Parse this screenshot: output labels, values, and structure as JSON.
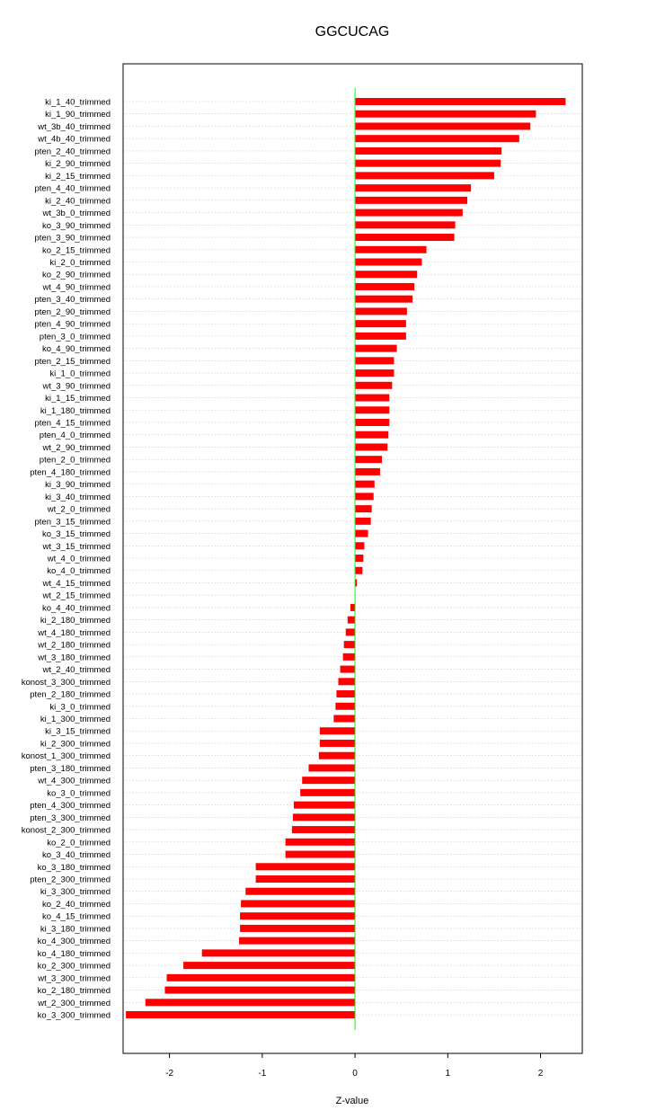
{
  "chart_data": {
    "type": "bar",
    "orientation": "horizontal",
    "title": "GGCUCAG",
    "xlabel": "Z-value",
    "ylabel": "",
    "xlim": [
      -2.5,
      2.45
    ],
    "xticks": [
      -2,
      -1,
      0,
      1,
      2
    ],
    "grid": "horizontal dotted",
    "bar_color": "#ff0000",
    "zero_line_color": "#00ff00",
    "categories": [
      "ki_1_40_trimmed",
      "ki_1_90_trimmed",
      "wt_3b_40_trimmed",
      "wt_4b_40_trimmed",
      "pten_2_40_trimmed",
      "ki_2_90_trimmed",
      "ki_2_15_trimmed",
      "pten_4_40_trimmed",
      "ki_2_40_trimmed",
      "wt_3b_0_trimmed",
      "ko_3_90_trimmed",
      "pten_3_90_trimmed",
      "ko_2_15_trimmed",
      "ki_2_0_trimmed",
      "ko_2_90_trimmed",
      "wt_4_90_trimmed",
      "pten_3_40_trimmed",
      "pten_2_90_trimmed",
      "pten_4_90_trimmed",
      "pten_3_0_trimmed",
      "ko_4_90_trimmed",
      "pten_2_15_trimmed",
      "ki_1_0_trimmed",
      "wt_3_90_trimmed",
      "ki_1_15_trimmed",
      "ki_1_180_trimmed",
      "pten_4_15_trimmed",
      "pten_4_0_trimmed",
      "wt_2_90_trimmed",
      "pten_2_0_trimmed",
      "pten_4_180_trimmed",
      "ki_3_90_trimmed",
      "ki_3_40_trimmed",
      "wt_2_0_trimmed",
      "pten_3_15_trimmed",
      "ko_3_15_trimmed",
      "wt_3_15_trimmed",
      "wt_4_0_trimmed",
      "ko_4_0_trimmed",
      "wt_4_15_trimmed",
      "wt_2_15_trimmed",
      "ko_4_40_trimmed",
      "ki_2_180_trimmed",
      "wt_4_180_trimmed",
      "wt_2_180_trimmed",
      "wt_3_180_trimmed",
      "wt_2_40_trimmed",
      "konost_3_300_trimmed",
      "pten_2_180_trimmed",
      "ki_3_0_trimmed",
      "ki_1_300_trimmed",
      "ki_3_15_trimmed",
      "ki_2_300_trimmed",
      "konost_1_300_trimmed",
      "pten_3_180_trimmed",
      "wt_4_300_trimmed",
      "ko_3_0_trimmed",
      "pten_4_300_trimmed",
      "pten_3_300_trimmed",
      "konost_2_300_trimmed",
      "ko_2_0_trimmed",
      "ko_3_40_trimmed",
      "ko_3_180_trimmed",
      "pten_2_300_trimmed",
      "ki_3_300_trimmed",
      "ko_2_40_trimmed",
      "ko_4_15_trimmed",
      "ki_3_180_trimmed",
      "ko_4_300_trimmed",
      "ko_4_180_trimmed",
      "ko_2_300_trimmed",
      "wt_3_300_trimmed",
      "ko_2_180_trimmed",
      "wt_2_300_trimmed",
      "ko_3_300_trimmed"
    ],
    "values": [
      2.27,
      1.95,
      1.89,
      1.77,
      1.58,
      1.57,
      1.5,
      1.25,
      1.21,
      1.16,
      1.08,
      1.07,
      0.77,
      0.72,
      0.67,
      0.64,
      0.62,
      0.56,
      0.55,
      0.55,
      0.45,
      0.42,
      0.42,
      0.4,
      0.37,
      0.37,
      0.37,
      0.36,
      0.35,
      0.29,
      0.27,
      0.21,
      0.2,
      0.18,
      0.17,
      0.14,
      0.1,
      0.09,
      0.08,
      0.02,
      0.0,
      -0.05,
      -0.08,
      -0.1,
      -0.12,
      -0.13,
      -0.16,
      -0.18,
      -0.2,
      -0.21,
      -0.23,
      -0.38,
      -0.38,
      -0.39,
      -0.5,
      -0.57,
      -0.59,
      -0.66,
      -0.67,
      -0.68,
      -0.75,
      -0.75,
      -1.07,
      -1.07,
      -1.18,
      -1.23,
      -1.24,
      -1.24,
      -1.25,
      -1.65,
      -1.85,
      -2.03,
      -2.05,
      -2.26,
      -2.47
    ]
  }
}
